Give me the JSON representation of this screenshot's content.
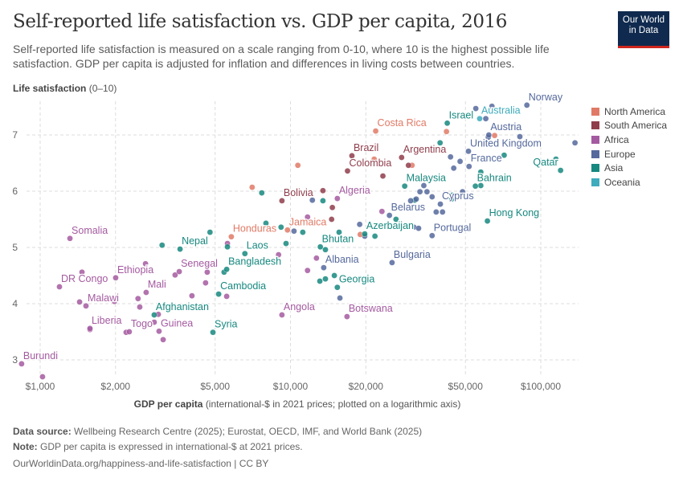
{
  "title": "Self-reported life satisfaction vs. GDP per capita, 2016",
  "subtitle": "Self-reported life satisfaction is measured on a scale ranging from 0-10, where 10 is the highest possible life satisfaction. GDP per capita is adjusted for inflation and differences in living costs between countries.",
  "logo": "Our World in Data",
  "footer": {
    "source_label": "Data source:",
    "source": "Wellbeing Research Centre (2025); Eurostat, OECD, IMF, and World Bank (2025)",
    "note_label": "Note:",
    "note": "GDP per capita is expressed in international-$ at 2021 prices.",
    "url": "OurWorldinData.org/happiness-and-life-satisfaction | CC BY"
  },
  "chart_data": {
    "type": "scatter",
    "title": "Self-reported life satisfaction vs. GDP per capita, 2016",
    "ylabel_bold": "Life satisfaction",
    "ylabel_rest": "(0–10)",
    "xlabel_bold": "GDP per capita",
    "xlabel_rest": "(international-$ in 2021 prices; plotted on a logarithmic axis)",
    "x_scale": "log",
    "xlim": [
      850,
      140000
    ],
    "ylim": [
      2.7,
      7.6
    ],
    "x_ticks": [
      {
        "v": 1000,
        "label": "$1,000"
      },
      {
        "v": 2000,
        "label": "$2,000"
      },
      {
        "v": 5000,
        "label": "$5,000"
      },
      {
        "v": 10000,
        "label": "$10,000"
      },
      {
        "v": 20000,
        "label": "$20,000"
      },
      {
        "v": 50000,
        "label": "$50,000"
      },
      {
        "v": 100000,
        "label": "$100,000"
      }
    ],
    "y_ticks": [
      {
        "v": 3,
        "label": "3"
      },
      {
        "v": 4,
        "label": "4"
      },
      {
        "v": 5,
        "label": "5"
      },
      {
        "v": 6,
        "label": "6"
      },
      {
        "v": 7,
        "label": "7"
      }
    ],
    "grid": true,
    "legend_position": "right",
    "regions": [
      {
        "name": "North America",
        "color": "#e07a66"
      },
      {
        "name": "South America",
        "color": "#8f3d4b"
      },
      {
        "name": "Africa",
        "color": "#a45aa0"
      },
      {
        "name": "Europe",
        "color": "#55699c"
      },
      {
        "name": "Asia",
        "color": "#16887f"
      },
      {
        "name": "Oceania",
        "color": "#3eacbc"
      }
    ],
    "points": [
      {
        "label": "Burundi",
        "region": "Africa",
        "gdp": 843,
        "ls": 2.93
      },
      {
        "label": "Somalia",
        "region": "Africa",
        "gdp": 1315,
        "ls": 5.16
      },
      {
        "label": "DR Congo",
        "region": "Africa",
        "gdp": 1194,
        "ls": 4.3
      },
      {
        "label": "Ethiopia",
        "region": "Africa",
        "gdp": 2003,
        "ls": 4.46
      },
      {
        "label": "Malawi",
        "region": "Africa",
        "gdp": 1524,
        "ls": 3.96
      },
      {
        "label": "Liberia",
        "region": "Africa",
        "gdp": 1581,
        "ls": 3.56
      },
      {
        "label": "Togo",
        "region": "Africa",
        "gdp": 2270,
        "ls": 3.5
      },
      {
        "label": "Mali",
        "region": "Africa",
        "gdp": 2651,
        "ls": 4.2
      },
      {
        "label": "Guinea",
        "region": "Africa",
        "gdp": 2985,
        "ls": 3.51
      },
      {
        "label": "Senegal",
        "region": "Africa",
        "gdp": 3594,
        "ls": 4.57
      },
      {
        "label": "Angola",
        "region": "Africa",
        "gdp": 9245,
        "ls": 3.8
      },
      {
        "label": "Botswana",
        "region": "Africa",
        "gdp": 16820,
        "ls": 3.77
      },
      {
        "label": "Algeria",
        "region": "Africa",
        "gdp": 15389,
        "ls": 5.87
      },
      {
        "label": "Afghanistan",
        "region": "Asia",
        "gdp": 2855,
        "ls": 3.8
      },
      {
        "label": "Nepal",
        "region": "Asia",
        "gdp": 3621,
        "ls": 4.97
      },
      {
        "label": "Syria",
        "region": "Asia",
        "gdp": 4900,
        "ls": 3.49
      },
      {
        "label": "Cambodia",
        "region": "Asia",
        "gdp": 5165,
        "ls": 4.17
      },
      {
        "label": "Bangladesh",
        "region": "Asia",
        "gdp": 5560,
        "ls": 4.61
      },
      {
        "label": "Laos",
        "region": "Asia",
        "gdp": 6575,
        "ls": 4.89
      },
      {
        "label": "Georgia",
        "region": "Asia",
        "gdp": 15389,
        "ls": 4.29
      },
      {
        "label": "Bhutan",
        "region": "Asia",
        "gdp": 13160,
        "ls": 5.01
      },
      {
        "label": "Azerbaijan",
        "region": "Asia",
        "gdp": 19800,
        "ls": 5.24
      },
      {
        "label": "Hong Kong",
        "region": "Asia",
        "gdp": 61200,
        "ls": 5.47
      },
      {
        "label": "Malaysia",
        "region": "Asia",
        "gdp": 28600,
        "ls": 6.09
      },
      {
        "label": "Bahrain",
        "region": "Asia",
        "gdp": 54800,
        "ls": 6.09
      },
      {
        "label": "Qatar",
        "region": "Asia",
        "gdp": 120000,
        "ls": 6.37
      },
      {
        "label": "Israel",
        "region": "Asia",
        "gdp": 42300,
        "ls": 7.21
      },
      {
        "label": "Honduras",
        "region": "North America",
        "gdp": 5803,
        "ls": 5.19
      },
      {
        "label": "Jamaica",
        "region": "North America",
        "gdp": 9730,
        "ls": 5.31
      },
      {
        "label": "Costa Rica",
        "region": "North America",
        "gdp": 21900,
        "ls": 7.07
      },
      {
        "label": "Bolivia",
        "region": "South America",
        "gdp": 9245,
        "ls": 5.83
      },
      {
        "label": "Brazil",
        "region": "South America",
        "gdp": 17600,
        "ls": 6.63
      },
      {
        "label": "Colombia",
        "region": "South America",
        "gdp": 16900,
        "ls": 6.36
      },
      {
        "label": "Argentina",
        "region": "South America",
        "gdp": 27800,
        "ls": 6.6
      },
      {
        "label": "Albania",
        "region": "Europe",
        "gdp": 13580,
        "ls": 4.64
      },
      {
        "label": "Belarus",
        "region": "Europe",
        "gdp": 24850,
        "ls": 5.57
      },
      {
        "label": "Bulgaria",
        "region": "Europe",
        "gdp": 25460,
        "ls": 4.73
      },
      {
        "label": "Portugal",
        "region": "Europe",
        "gdp": 36800,
        "ls": 5.21
      },
      {
        "label": "Cyprus",
        "region": "Europe",
        "gdp": 39700,
        "ls": 5.77
      },
      {
        "label": "France",
        "region": "Europe",
        "gdp": 51700,
        "ls": 6.44
      },
      {
        "label": "United Kingdom",
        "region": "Europe",
        "gdp": 51400,
        "ls": 6.71
      },
      {
        "label": "Austria",
        "region": "Europe",
        "gdp": 62000,
        "ls": 7.0
      },
      {
        "label": "Norway",
        "region": "Europe",
        "gdp": 88000,
        "ls": 7.53
      },
      {
        "label": "Australia",
        "region": "Oceania",
        "gdp": 57000,
        "ls": 7.29
      },
      {
        "region": "Africa",
        "gdp": 1469,
        "ls": 4.56
      },
      {
        "region": "Africa",
        "gdp": 2635,
        "ls": 4.71
      },
      {
        "region": "Africa",
        "gdp": 3460,
        "ls": 4.51
      },
      {
        "region": "Africa",
        "gdp": 4650,
        "ls": 4.71
      },
      {
        "region": "Africa",
        "gdp": 4650,
        "ls": 4.56
      },
      {
        "region": "Africa",
        "gdp": 4580,
        "ls": 4.37
      },
      {
        "region": "Africa",
        "gdp": 4040,
        "ls": 4.14
      },
      {
        "region": "Africa",
        "gdp": 2460,
        "ls": 4.09
      },
      {
        "region": "Africa",
        "gdp": 2500,
        "ls": 3.94
      },
      {
        "region": "Africa",
        "gdp": 1980,
        "ls": 4.04
      },
      {
        "region": "Africa",
        "gdp": 1437,
        "ls": 4.03
      },
      {
        "region": "Africa",
        "gdp": 1581,
        "ls": 3.54
      },
      {
        "region": "Africa",
        "gdp": 2205,
        "ls": 3.49
      },
      {
        "region": "Africa",
        "gdp": 2855,
        "ls": 3.67
      },
      {
        "region": "Africa",
        "gdp": 2965,
        "ls": 3.81
      },
      {
        "region": "Africa",
        "gdp": 3100,
        "ls": 3.36
      },
      {
        "region": "Africa",
        "gdp": 1022,
        "ls": 2.7
      },
      {
        "region": "Africa",
        "gdp": 5600,
        "ls": 5.07
      },
      {
        "region": "Africa",
        "gdp": 8960,
        "ls": 4.87
      },
      {
        "region": "Africa",
        "gdp": 11700,
        "ls": 5.54
      },
      {
        "region": "Africa",
        "gdp": 11700,
        "ls": 4.59
      },
      {
        "region": "Africa",
        "gdp": 12700,
        "ls": 4.81
      },
      {
        "region": "Africa",
        "gdp": 23200,
        "ls": 5.64
      },
      {
        "region": "Africa",
        "gdp": 5560,
        "ls": 4.13
      },
      {
        "region": "Asia",
        "gdp": 3070,
        "ls": 5.04
      },
      {
        "region": "Asia",
        "gdp": 4770,
        "ls": 5.27
      },
      {
        "region": "Asia",
        "gdp": 5600,
        "ls": 5.01
      },
      {
        "region": "Asia",
        "gdp": 5430,
        "ls": 4.56
      },
      {
        "region": "Asia",
        "gdp": 7680,
        "ls": 5.97
      },
      {
        "region": "Asia",
        "gdp": 7980,
        "ls": 5.43
      },
      {
        "region": "Asia",
        "gdp": 9170,
        "ls": 5.36
      },
      {
        "region": "Asia",
        "gdp": 9600,
        "ls": 5.07
      },
      {
        "region": "Asia",
        "gdp": 11200,
        "ls": 5.27
      },
      {
        "region": "Asia",
        "gdp": 13480,
        "ls": 5.83
      },
      {
        "region": "Asia",
        "gdp": 15640,
        "ls": 5.27
      },
      {
        "region": "Asia",
        "gdp": 13790,
        "ls": 4.96
      },
      {
        "region": "Asia",
        "gdp": 14970,
        "ls": 4.5
      },
      {
        "region": "Asia",
        "gdp": 13790,
        "ls": 4.44
      },
      {
        "region": "Asia",
        "gdp": 13100,
        "ls": 4.4
      },
      {
        "region": "Asia",
        "gdp": 21750,
        "ls": 5.2
      },
      {
        "region": "Asia",
        "gdp": 39600,
        "ls": 6.86
      },
      {
        "region": "Asia",
        "gdp": 44400,
        "ls": 5.93
      },
      {
        "region": "Asia",
        "gdp": 44000,
        "ls": 5.86
      },
      {
        "region": "Asia",
        "gdp": 57600,
        "ls": 6.34
      },
      {
        "region": "Asia",
        "gdp": 71400,
        "ls": 6.64
      },
      {
        "region": "Asia",
        "gdp": 115000,
        "ls": 6.57
      },
      {
        "region": "Asia",
        "gdp": 57600,
        "ls": 6.1
      },
      {
        "region": "Asia",
        "gdp": 31400,
        "ls": 5.84
      },
      {
        "region": "Asia",
        "gdp": 26400,
        "ls": 5.5
      },
      {
        "region": "Europe",
        "gdp": 55000,
        "ls": 7.47
      },
      {
        "region": "Europe",
        "gdp": 63800,
        "ls": 7.51
      },
      {
        "region": "Europe",
        "gdp": 60300,
        "ls": 7.29
      },
      {
        "region": "Europe",
        "gdp": 61700,
        "ls": 6.96
      },
      {
        "region": "Europe",
        "gdp": 82500,
        "ls": 6.97
      },
      {
        "region": "Europe",
        "gdp": 137000,
        "ls": 6.86
      },
      {
        "region": "Europe",
        "gdp": 43600,
        "ls": 6.61
      },
      {
        "region": "Europe",
        "gdp": 47600,
        "ls": 6.53
      },
      {
        "region": "Europe",
        "gdp": 44900,
        "ls": 6.41
      },
      {
        "region": "Europe",
        "gdp": 48700,
        "ls": 5.99
      },
      {
        "region": "Europe",
        "gdp": 34100,
        "ls": 6.1
      },
      {
        "region": "Europe",
        "gdp": 32900,
        "ls": 5.99
      },
      {
        "region": "Europe",
        "gdp": 35100,
        "ls": 5.99
      },
      {
        "region": "Europe",
        "gdp": 36800,
        "ls": 5.9
      },
      {
        "region": "Europe",
        "gdp": 31800,
        "ls": 5.86
      },
      {
        "region": "Europe",
        "gdp": 30200,
        "ls": 5.83
      },
      {
        "region": "Europe",
        "gdp": 38200,
        "ls": 5.63
      },
      {
        "region": "Europe",
        "gdp": 40500,
        "ls": 5.63
      },
      {
        "region": "Europe",
        "gdp": 31100,
        "ls": 5.36
      },
      {
        "region": "Europe",
        "gdp": 32500,
        "ls": 5.34
      },
      {
        "region": "Europe",
        "gdp": 18900,
        "ls": 5.41
      },
      {
        "region": "Europe",
        "gdp": 19800,
        "ls": 5.2
      },
      {
        "region": "Europe",
        "gdp": 12230,
        "ls": 5.84
      },
      {
        "region": "Europe",
        "gdp": 15760,
        "ls": 4.1
      },
      {
        "region": "Europe",
        "gdp": 10330,
        "ls": 5.29
      },
      {
        "region": "North America",
        "gdp": 7030,
        "ls": 6.07
      },
      {
        "region": "North America",
        "gdp": 10700,
        "ls": 6.46
      },
      {
        "region": "North America",
        "gdp": 42000,
        "ls": 7.06
      },
      {
        "region": "North America",
        "gdp": 30600,
        "ls": 6.46
      },
      {
        "region": "North America",
        "gdp": 21600,
        "ls": 6.57
      },
      {
        "region": "North America",
        "gdp": 65400,
        "ls": 6.99
      },
      {
        "region": "North America",
        "gdp": 19000,
        "ls": 5.23
      },
      {
        "region": "South America",
        "gdp": 13480,
        "ls": 6.01
      },
      {
        "region": "South America",
        "gdp": 14700,
        "ls": 5.71
      },
      {
        "region": "South America",
        "gdp": 14600,
        "ls": 5.5
      },
      {
        "region": "South America",
        "gdp": 23400,
        "ls": 6.27
      },
      {
        "region": "South America",
        "gdp": 29600,
        "ls": 6.46
      }
    ]
  }
}
